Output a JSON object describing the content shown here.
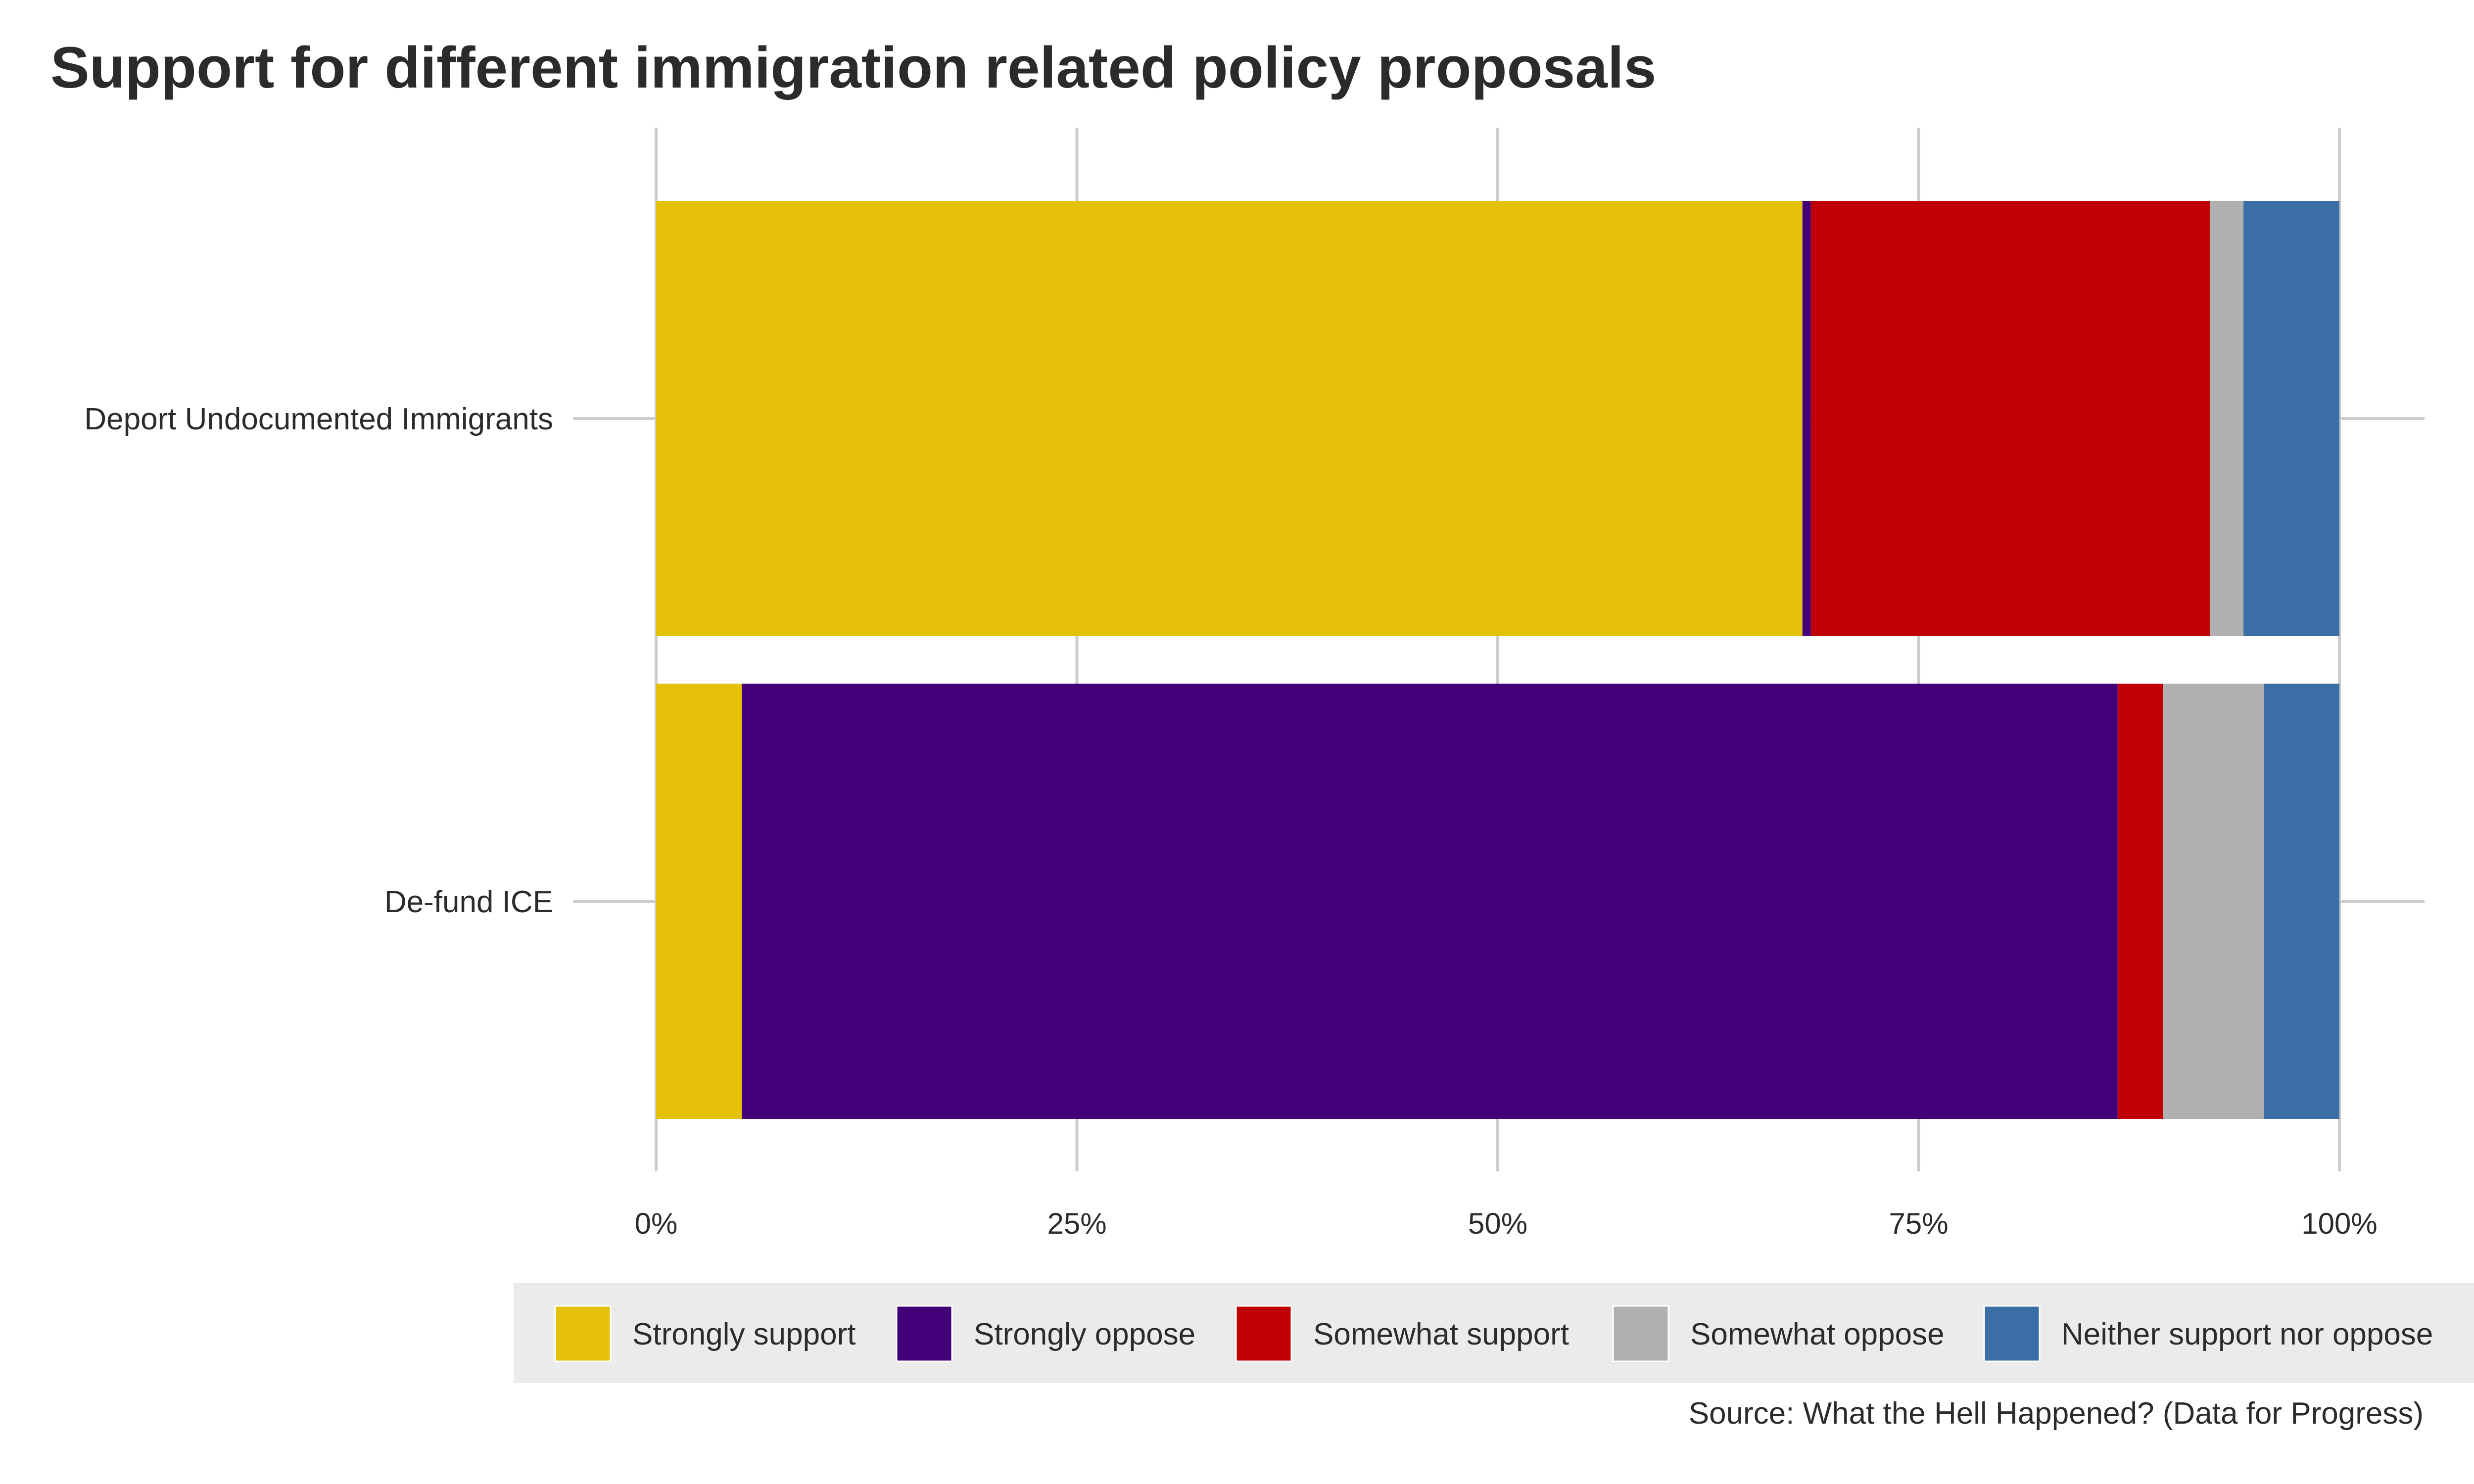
{
  "chart_data": {
    "type": "bar",
    "orientation": "horizontal",
    "stacked": true,
    "title": "Support for different immigration related policy proposals",
    "caption": "Source: What the Hell Happened? (Data for Progress)",
    "categories": [
      "Deport Undocumented Immigrants",
      "De-fund ICE"
    ],
    "xlim": [
      0,
      1
    ],
    "x_ticks": [
      0,
      0.25,
      0.5,
      0.75,
      1
    ],
    "x_tick_labels": [
      "0%",
      "25%",
      "50%",
      "75%",
      "100%"
    ],
    "grid": true,
    "legend_position": "bottom",
    "series": [
      {
        "name": "Strongly support",
        "color": "#E6C10A",
        "values": [
          0.681,
          0.051
        ]
      },
      {
        "name": "Strongly oppose",
        "color": "#420078",
        "values": [
          0.005,
          0.819
        ]
      },
      {
        "name": "Somewhat support",
        "color": "#C00004",
        "values": [
          0.237,
          0.027
        ]
      },
      {
        "name": "Somewhat oppose",
        "color": "#B0B0B0",
        "values": [
          0.02,
          0.06
        ]
      },
      {
        "name": "Neither support nor oppose",
        "color": "#3A6EA5",
        "values": [
          0.057,
          0.045
        ]
      }
    ]
  }
}
